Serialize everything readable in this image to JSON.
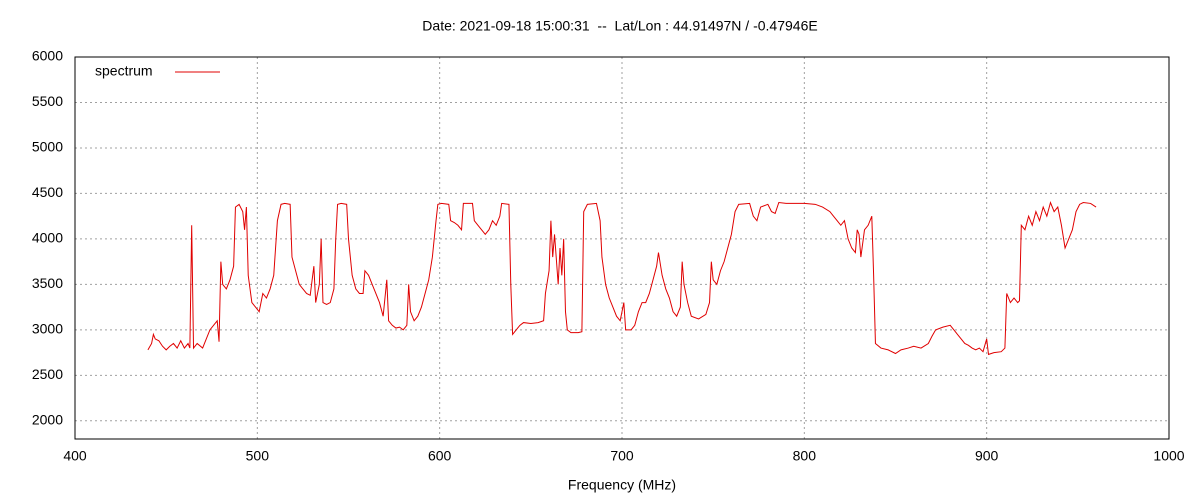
{
  "chart_data": {
    "type": "line",
    "title": "Date: 2021-09-18 15:00:31  --  Lat/Lon : 44.91497N / -0.47946E",
    "x_label": "Frequency (MHz)",
    "x": [
      440,
      442,
      443,
      444,
      446,
      448,
      450,
      452,
      454,
      456,
      458,
      460,
      462,
      463,
      464,
      465,
      467,
      470,
      472,
      474,
      476,
      478,
      479,
      480,
      481,
      483,
      485,
      487,
      488,
      490,
      492,
      493,
      494,
      495,
      497,
      499,
      501,
      503,
      505,
      507,
      509,
      511,
      513,
      515,
      518,
      519,
      521,
      523,
      525,
      527,
      529,
      531,
      532,
      534,
      535,
      536,
      538,
      540,
      542,
      543,
      544,
      546,
      549,
      550,
      552,
      554,
      556,
      558,
      559,
      561,
      563,
      565,
      567,
      569,
      571,
      572,
      574,
      576,
      578,
      580,
      582,
      583,
      584,
      586,
      588,
      590,
      592,
      594,
      596,
      598,
      599,
      601,
      605,
      606,
      608,
      610,
      612,
      613,
      618,
      619,
      621,
      623,
      625,
      627,
      629,
      631,
      633,
      634,
      638,
      639,
      640,
      642,
      644,
      646,
      650,
      654,
      657,
      658,
      660,
      661,
      662,
      663,
      665,
      666,
      667,
      668,
      669,
      670,
      672,
      676,
      678,
      679,
      681,
      686,
      688,
      689,
      691,
      693,
      695,
      697,
      699,
      701,
      702,
      705,
      707,
      709,
      711,
      713,
      715,
      717,
      719,
      720,
      722,
      724,
      726,
      728,
      730,
      732,
      733,
      734,
      736,
      738,
      742,
      746,
      748,
      749,
      750,
      752,
      754,
      756,
      758,
      760,
      762,
      764,
      770,
      772,
      774,
      776,
      780,
      782,
      784,
      786,
      790,
      800,
      806,
      810,
      814,
      816,
      818,
      820,
      822,
      824,
      826,
      828,
      829,
      830,
      831,
      833,
      835,
      837,
      838,
      839,
      842,
      846,
      850,
      853,
      857,
      860,
      864,
      868,
      870,
      872,
      876,
      880,
      882,
      884,
      886,
      888,
      890,
      892,
      894,
      896,
      898,
      900,
      901,
      904,
      908,
      910,
      911,
      913,
      915,
      917,
      918,
      919,
      921,
      923,
      925,
      927,
      929,
      931,
      933,
      935,
      937,
      939,
      941,
      943,
      945,
      947,
      949,
      951,
      953,
      957,
      960
    ],
    "series": [
      {
        "name": "spectrum",
        "color": "#e00000",
        "values": [
          2780,
          2850,
          2950,
          2900,
          2880,
          2820,
          2780,
          2820,
          2850,
          2800,
          2880,
          2800,
          2850,
          2800,
          4150,
          2800,
          2850,
          2800,
          2900,
          3000,
          3050,
          3100,
          2870,
          3750,
          3500,
          3450,
          3550,
          3700,
          4350,
          4380,
          4300,
          4100,
          4350,
          3600,
          3300,
          3250,
          3200,
          3400,
          3350,
          3450,
          3600,
          4200,
          4380,
          4390,
          4380,
          3800,
          3650,
          3500,
          3450,
          3400,
          3380,
          3700,
          3300,
          3500,
          4000,
          3300,
          3280,
          3300,
          3450,
          4000,
          4380,
          4390,
          4380,
          4000,
          3600,
          3450,
          3400,
          3400,
          3650,
          3600,
          3500,
          3400,
          3300,
          3150,
          3550,
          3100,
          3050,
          3020,
          3030,
          3000,
          3050,
          3500,
          3200,
          3100,
          3150,
          3250,
          3400,
          3550,
          3800,
          4200,
          4380,
          4390,
          4380,
          4200,
          4180,
          4150,
          4100,
          4390,
          4390,
          4200,
          4150,
          4100,
          4050,
          4100,
          4200,
          4150,
          4250,
          4390,
          4380,
          3500,
          2950,
          3000,
          3050,
          3080,
          3070,
          3080,
          3100,
          3400,
          3650,
          4200,
          3800,
          4050,
          3500,
          3900,
          3600,
          4000,
          3200,
          3000,
          2970,
          2970,
          2980,
          4300,
          4380,
          4390,
          4200,
          3800,
          3500,
          3350,
          3250,
          3150,
          3100,
          3300,
          3000,
          3000,
          3050,
          3200,
          3300,
          3300,
          3400,
          3550,
          3700,
          3850,
          3600,
          3450,
          3350,
          3200,
          3150,
          3250,
          3750,
          3500,
          3300,
          3150,
          3120,
          3170,
          3300,
          3750,
          3550,
          3500,
          3650,
          3750,
          3900,
          4050,
          4300,
          4380,
          4390,
          4250,
          4200,
          4350,
          4380,
          4300,
          4280,
          4400,
          4390,
          4390,
          4380,
          4350,
          4300,
          4250,
          4200,
          4150,
          4200,
          4000,
          3900,
          3850,
          4100,
          4050,
          3800,
          4100,
          4150,
          4250,
          3600,
          2850,
          2800,
          2780,
          2740,
          2780,
          2800,
          2820,
          2800,
          2850,
          2930,
          3000,
          3030,
          3050,
          3000,
          2950,
          2900,
          2850,
          2830,
          2800,
          2780,
          2800,
          2760,
          2900,
          2730,
          2750,
          2760,
          2800,
          3400,
          3300,
          3350,
          3300,
          3320,
          4150,
          4100,
          4250,
          4150,
          4300,
          4200,
          4350,
          4250,
          4400,
          4300,
          4350,
          4150,
          3900,
          4000,
          4100,
          4300,
          4380,
          4400,
          4390,
          4350
        ]
      }
    ],
    "xlim": [
      400,
      1000
    ],
    "xticks": [
      400,
      500,
      600,
      700,
      800,
      900,
      1000
    ],
    "ylim": [
      1800,
      6000
    ],
    "yticks": [
      2000,
      2500,
      3000,
      3500,
      4000,
      4500,
      5000,
      5500,
      6000
    ],
    "grid": true,
    "legend": "top-left"
  }
}
